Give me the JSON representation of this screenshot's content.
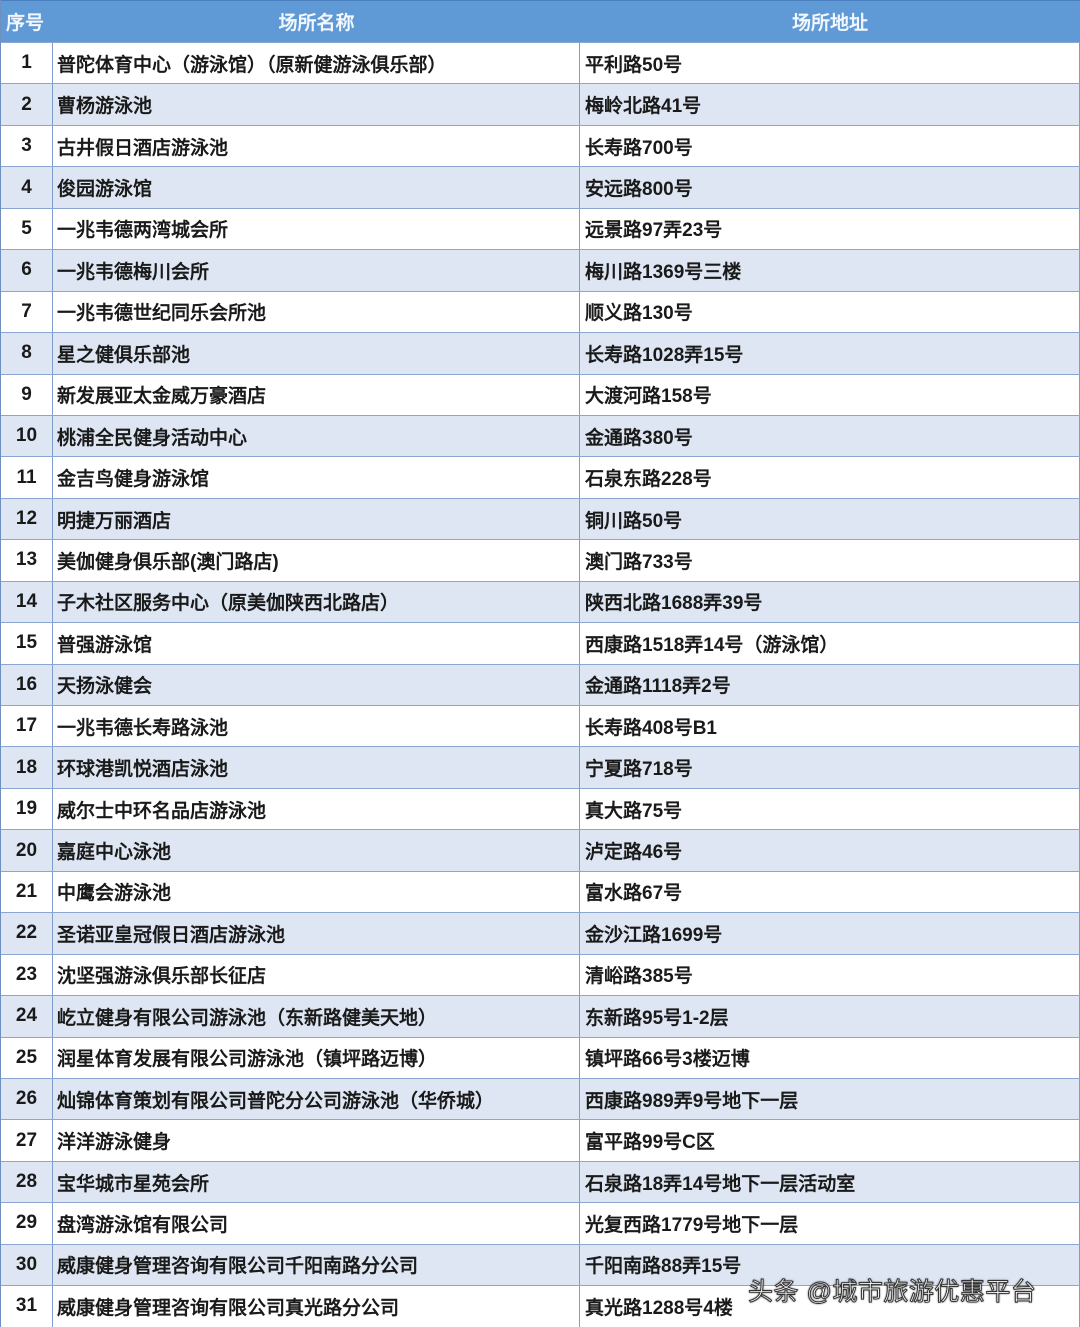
{
  "header": {
    "index": "序号",
    "name": "场所名称",
    "address": "场所地址"
  },
  "rows": [
    {
      "no": "1",
      "name": "普陀体育中心（游泳馆）（原新健游泳俱乐部）",
      "address": "平利路50号"
    },
    {
      "no": "2",
      "name": "曹杨游泳池",
      "address": "梅岭北路41号"
    },
    {
      "no": "3",
      "name": "古井假日酒店游泳池",
      "address": "长寿路700号"
    },
    {
      "no": "4",
      "name": "俊园游泳馆",
      "address": "安远路800号"
    },
    {
      "no": "5",
      "name": "一兆韦德两湾城会所",
      "address": "远景路97弄23号"
    },
    {
      "no": "6",
      "name": "一兆韦德梅川会所",
      "address": "梅川路1369号三楼"
    },
    {
      "no": "7",
      "name": "一兆韦德世纪同乐会所池",
      "address": "顺义路130号"
    },
    {
      "no": "8",
      "name": "星之健俱乐部池",
      "address": "长寿路1028弄15号"
    },
    {
      "no": "9",
      "name": "新发展亚太金威万豪酒店",
      "address": "大渡河路158号"
    },
    {
      "no": "10",
      "name": "桃浦全民健身活动中心",
      "address": "金通路380号"
    },
    {
      "no": "11",
      "name": "金吉鸟健身游泳馆",
      "address": "石泉东路228号"
    },
    {
      "no": "12",
      "name": "明捷万丽酒店",
      "address": "铜川路50号"
    },
    {
      "no": "13",
      "name": "美伽健身俱乐部(澳门路店)",
      "address": "澳门路733号"
    },
    {
      "no": "14",
      "name": "子木社区服务中心（原美伽陕西北路店）",
      "address": "陕西北路1688弄39号"
    },
    {
      "no": "15",
      "name": "普强游泳馆",
      "address": "西康路1518弄14号（游泳馆）"
    },
    {
      "no": "16",
      "name": "天扬泳健会",
      "address": "金通路1118弄2号"
    },
    {
      "no": "17",
      "name": "一兆韦德长寿路泳池",
      "address": "长寿路408号B1"
    },
    {
      "no": "18",
      "name": "环球港凯悦酒店泳池",
      "address": "宁夏路718号"
    },
    {
      "no": "19",
      "name": "威尔士中环名品店游泳池",
      "address": "真大路75号"
    },
    {
      "no": "20",
      "name": "嘉庭中心泳池",
      "address": "泸定路46号"
    },
    {
      "no": "21",
      "name": "中鹰会游泳池",
      "address": "富水路67号"
    },
    {
      "no": "22",
      "name": "圣诺亚皇冠假日酒店游泳池",
      "address": "金沙江路1699号"
    },
    {
      "no": "23",
      "name": "沈坚强游泳俱乐部长征店",
      "address": "清峪路385号"
    },
    {
      "no": "24",
      "name": "屹立健身有限公司游泳池（东新路健美天地）",
      "address": "东新路95号1-2层"
    },
    {
      "no": "25",
      "name": "润星体育发展有限公司游泳池（镇坪路迈博）",
      "address": "镇坪路66号3楼迈博"
    },
    {
      "no": "26",
      "name": "灿锦体育策划有限公司普陀分公司游泳池（华侨城）",
      "address": "西康路989弄9号地下一层"
    },
    {
      "no": "27",
      "name": "洋洋游泳健身",
      "address": "富平路99号C区"
    },
    {
      "no": "28",
      "name": "宝华城市星苑会所",
      "address": "石泉路18弄14号地下一层活动室"
    },
    {
      "no": "29",
      "name": "盘湾游泳馆有限公司",
      "address": "光复西路1779号地下一层"
    },
    {
      "no": "30",
      "name": "威康健身管理咨询有限公司千阳南路分公司",
      "address": "千阳南路88弄15号"
    },
    {
      "no": "31",
      "name": "威康健身管理咨询有限公司真光路分公司",
      "address": "真光路1288号4楼"
    }
  ],
  "watermark": "头条 @城市旅游优惠平台",
  "colors": {
    "header_bg": "#5f9ad6",
    "stripe": "#dde6f2",
    "border": "#7f9dcc"
  }
}
